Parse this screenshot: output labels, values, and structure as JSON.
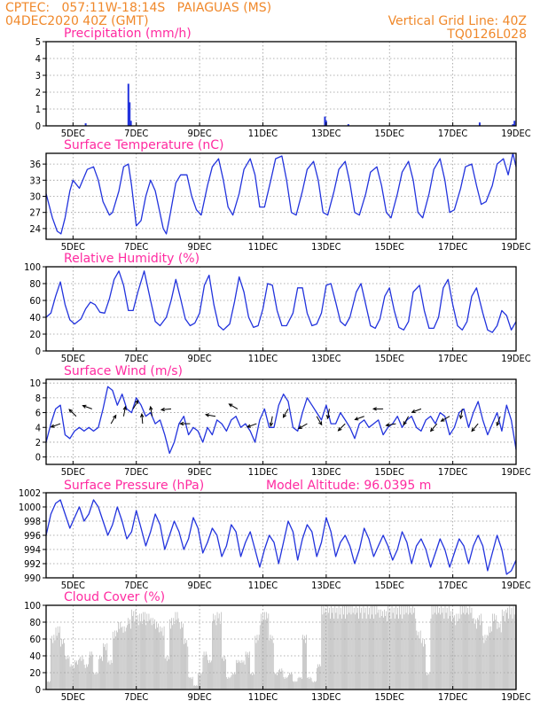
{
  "header": {
    "line1": "CPTEC:   057:11W-18:14S   PAIAGUAS (MS)",
    "line2_left": "04DEC2020 40Z (GMT)",
    "line2_right": "Vertical Grid Line: 40Z",
    "line3_right": "TQ0126L028"
  },
  "colors": {
    "header": "#f0882a",
    "title": "#ff2aa0",
    "line": "#2233dd",
    "cloud": "#a9a9a9",
    "grid": "#999999"
  },
  "x_axis": {
    "ticks": [
      {
        "label": "5DEC",
        "day": 5
      },
      {
        "label": "7DEC",
        "day": 7
      },
      {
        "label": "9DEC",
        "day": 9
      },
      {
        "label": "11DEC",
        "day": 11
      },
      {
        "label": "13DEC",
        "day": 13
      },
      {
        "label": "15DEC",
        "day": 15
      },
      {
        "label": "17DEC",
        "day": 17
      },
      {
        "label": "19DEC",
        "day": 19
      }
    ],
    "range_day": [
      4.15,
      19.0
    ]
  },
  "chart_data": [
    {
      "type": "bar",
      "title": "Precipitation (mm/h)",
      "ylim": [
        0,
        5
      ],
      "yticks": [
        0,
        1,
        2,
        3,
        4,
        5
      ],
      "x": [
        5.4,
        6.75,
        6.79,
        6.83,
        12.96,
        13.0,
        13.7,
        17.85,
        18.9,
        18.95
      ],
      "values": [
        0.15,
        2.5,
        1.4,
        0.3,
        0.55,
        0.3,
        0.1,
        0.2,
        0.1,
        0.3
      ]
    },
    {
      "type": "line",
      "title": "Surface Temperature (nC)",
      "ylim": [
        22,
        38
      ],
      "yticks": [
        24,
        27,
        30,
        33,
        36
      ],
      "x": [
        4.15,
        4.35,
        4.5,
        4.62,
        4.75,
        4.9,
        5.0,
        5.2,
        5.45,
        5.65,
        5.8,
        5.95,
        6.15,
        6.25,
        6.45,
        6.6,
        6.75,
        6.85,
        7.0,
        7.15,
        7.3,
        7.45,
        7.6,
        7.85,
        7.95,
        8.05,
        8.25,
        8.4,
        8.6,
        8.75,
        8.9,
        9.05,
        9.25,
        9.4,
        9.6,
        9.75,
        9.9,
        10.05,
        10.25,
        10.4,
        10.6,
        10.75,
        10.9,
        11.05,
        11.25,
        11.4,
        11.6,
        11.75,
        11.9,
        12.05,
        12.25,
        12.4,
        12.6,
        12.75,
        12.9,
        13.05,
        13.25,
        13.4,
        13.6,
        13.75,
        13.9,
        14.05,
        14.25,
        14.4,
        14.6,
        14.75,
        14.9,
        15.05,
        15.25,
        15.4,
        15.6,
        15.75,
        15.9,
        16.05,
        16.25,
        16.4,
        16.6,
        16.75,
        16.9,
        17.05,
        17.25,
        17.4,
        17.6,
        17.75,
        17.9,
        18.05,
        18.25,
        18.4,
        18.6,
        18.75,
        18.9,
        19.0
      ],
      "values": [
        30.5,
        26.0,
        23.5,
        23.0,
        26.0,
        31.0,
        33.0,
        31.5,
        35.0,
        35.5,
        33.0,
        29.0,
        26.5,
        27.0,
        31.0,
        35.5,
        36.0,
        32.0,
        24.5,
        25.5,
        30.0,
        33.0,
        31.0,
        24.0,
        23.0,
        26.0,
        32.5,
        34.0,
        34.0,
        30.0,
        27.5,
        26.5,
        32.0,
        35.5,
        37.0,
        33.0,
        28.0,
        26.5,
        30.5,
        35.0,
        37.0,
        34.0,
        28.0,
        28.0,
        33.0,
        37.0,
        37.5,
        33.0,
        27.0,
        26.5,
        31.0,
        35.0,
        36.5,
        33.0,
        27.0,
        26.5,
        31.0,
        35.0,
        36.5,
        32.5,
        27.0,
        26.5,
        30.5,
        34.5,
        35.5,
        32.0,
        27.0,
        26.0,
        30.5,
        34.5,
        36.5,
        33.0,
        27.0,
        26.0,
        30.5,
        35.0,
        37.0,
        33.0,
        27.0,
        27.5,
        31.5,
        35.5,
        36.0,
        32.0,
        28.5,
        29.0,
        32.0,
        36.0,
        37.0,
        34.0,
        38.0,
        35.5
      ]
    },
    {
      "type": "line",
      "title": "Relative Humidity (%)",
      "ylim": [
        0,
        100
      ],
      "yticks": [
        0,
        20,
        40,
        60,
        80,
        100
      ],
      "x": [
        4.15,
        4.3,
        4.45,
        4.6,
        4.75,
        4.9,
        5.05,
        5.25,
        5.4,
        5.55,
        5.7,
        5.85,
        6.0,
        6.15,
        6.3,
        6.45,
        6.6,
        6.75,
        6.9,
        7.05,
        7.25,
        7.45,
        7.6,
        7.75,
        7.95,
        8.1,
        8.25,
        8.4,
        8.55,
        8.7,
        8.85,
        9.0,
        9.15,
        9.3,
        9.45,
        9.6,
        9.75,
        9.95,
        10.1,
        10.25,
        10.4,
        10.55,
        10.7,
        10.85,
        11.0,
        11.15,
        11.3,
        11.45,
        11.6,
        11.75,
        11.95,
        12.1,
        12.25,
        12.4,
        12.55,
        12.7,
        12.85,
        13.0,
        13.15,
        13.3,
        13.45,
        13.6,
        13.75,
        13.95,
        14.1,
        14.25,
        14.4,
        14.55,
        14.7,
        14.85,
        15.0,
        15.15,
        15.3,
        15.45,
        15.6,
        15.75,
        15.95,
        16.1,
        16.25,
        16.4,
        16.55,
        16.7,
        16.85,
        17.0,
        17.15,
        17.3,
        17.45,
        17.6,
        17.75,
        17.95,
        18.1,
        18.25,
        18.4,
        18.55,
        18.7,
        18.85,
        19.0
      ],
      "values": [
        40,
        45,
        65,
        82,
        55,
        37,
        32,
        38,
        50,
        58,
        55,
        46,
        45,
        62,
        85,
        95,
        78,
        48,
        48,
        70,
        95,
        60,
        35,
        30,
        40,
        60,
        85,
        62,
        38,
        30,
        33,
        45,
        78,
        90,
        55,
        30,
        25,
        32,
        58,
        88,
        70,
        40,
        28,
        30,
        50,
        80,
        78,
        48,
        30,
        30,
        45,
        75,
        75,
        45,
        30,
        32,
        45,
        78,
        80,
        58,
        35,
        30,
        40,
        70,
        80,
        55,
        30,
        27,
        38,
        65,
        75,
        48,
        28,
        25,
        35,
        70,
        78,
        48,
        27,
        27,
        40,
        75,
        85,
        55,
        30,
        25,
        35,
        65,
        75,
        45,
        25,
        22,
        30,
        48,
        42,
        25,
        35
      ]
    },
    {
      "type": "line",
      "title": "Surface Wind (m/s)",
      "ylim": [
        -1,
        10.5
      ],
      "yticks": [
        0,
        2,
        4,
        6,
        8,
        10
      ],
      "x": [
        4.15,
        4.3,
        4.45,
        4.6,
        4.75,
        4.9,
        5.05,
        5.2,
        5.35,
        5.5,
        5.65,
        5.8,
        5.95,
        6.1,
        6.25,
        6.4,
        6.55,
        6.7,
        6.85,
        7.0,
        7.15,
        7.3,
        7.45,
        7.6,
        7.75,
        7.9,
        8.05,
        8.2,
        8.35,
        8.5,
        8.65,
        8.8,
        8.95,
        9.1,
        9.25,
        9.4,
        9.55,
        9.7,
        9.85,
        10.0,
        10.15,
        10.3,
        10.45,
        10.6,
        10.75,
        10.9,
        11.05,
        11.2,
        11.35,
        11.5,
        11.65,
        11.8,
        11.95,
        12.1,
        12.25,
        12.4,
        12.55,
        12.7,
        12.85,
        13.0,
        13.15,
        13.3,
        13.45,
        13.6,
        13.75,
        13.9,
        14.05,
        14.2,
        14.35,
        14.5,
        14.65,
        14.8,
        14.95,
        15.1,
        15.25,
        15.4,
        15.55,
        15.7,
        15.85,
        16.0,
        16.15,
        16.3,
        16.45,
        16.6,
        16.75,
        16.9,
        17.05,
        17.2,
        17.35,
        17.5,
        17.65,
        17.8,
        17.95,
        18.1,
        18.25,
        18.4,
        18.55,
        18.7,
        18.85,
        19.0
      ],
      "values": [
        2.0,
        4.5,
        6.5,
        7.0,
        3.0,
        2.5,
        3.5,
        4.0,
        3.5,
        4.0,
        3.5,
        4.0,
        6.5,
        9.5,
        9.0,
        7.0,
        8.5,
        6.5,
        6.0,
        8.0,
        7.0,
        5.5,
        6.0,
        4.5,
        5.0,
        3.0,
        0.5,
        2.0,
        4.5,
        5.5,
        3.0,
        4.0,
        3.5,
        2.0,
        4.0,
        3.0,
        5.0,
        4.5,
        3.5,
        5.0,
        5.5,
        4.0,
        4.5,
        3.5,
        2.0,
        5.0,
        6.5,
        4.0,
        4.0,
        7.0,
        8.5,
        7.5,
        4.0,
        3.5,
        6.0,
        8.0,
        7.0,
        6.0,
        5.0,
        7.0,
        4.5,
        4.5,
        6.0,
        5.0,
        4.0,
        2.5,
        4.5,
        5.0,
        4.0,
        4.5,
        5.0,
        3.0,
        4.0,
        4.5,
        5.5,
        4.0,
        5.0,
        5.5,
        4.0,
        3.5,
        5.0,
        5.5,
        4.5,
        6.0,
        5.5,
        3.0,
        4.0,
        6.0,
        6.5,
        4.0,
        6.0,
        7.5,
        5.0,
        3.0,
        4.5,
        6.0,
        3.5,
        7.0,
        5.0,
        1.0
      ]
    },
    {
      "type": "line",
      "title": "Surface Pressure (hPa)",
      "subtitle": "Model Altitude: 96.0395 m",
      "ylim": [
        990,
        1002
      ],
      "yticks": [
        990,
        992,
        994,
        996,
        998,
        1000,
        1002
      ],
      "x": [
        4.15,
        4.3,
        4.45,
        4.6,
        4.75,
        4.9,
        5.05,
        5.2,
        5.35,
        5.5,
        5.65,
        5.8,
        5.95,
        6.1,
        6.25,
        6.4,
        6.55,
        6.7,
        6.85,
        7.0,
        7.15,
        7.3,
        7.45,
        7.6,
        7.75,
        7.9,
        8.05,
        8.2,
        8.35,
        8.5,
        8.65,
        8.8,
        8.95,
        9.1,
        9.25,
        9.4,
        9.55,
        9.7,
        9.85,
        10.0,
        10.15,
        10.3,
        10.45,
        10.6,
        10.75,
        10.9,
        11.05,
        11.2,
        11.35,
        11.5,
        11.65,
        11.8,
        11.95,
        12.1,
        12.25,
        12.4,
        12.55,
        12.7,
        12.85,
        13.0,
        13.15,
        13.3,
        13.45,
        13.6,
        13.75,
        13.9,
        14.05,
        14.2,
        14.35,
        14.5,
        14.65,
        14.8,
        14.95,
        15.1,
        15.25,
        15.4,
        15.55,
        15.7,
        15.85,
        16.0,
        16.15,
        16.3,
        16.45,
        16.6,
        16.75,
        16.9,
        17.05,
        17.2,
        17.35,
        17.5,
        17.65,
        17.8,
        17.95,
        18.1,
        18.25,
        18.4,
        18.55,
        18.7,
        18.85,
        19.0
      ],
      "values": [
        996.0,
        999.0,
        1000.5,
        1001.0,
        999.0,
        997.0,
        998.5,
        1000.0,
        998.0,
        999.0,
        1001.0,
        1000.0,
        998.0,
        996.0,
        997.5,
        1000.0,
        998.0,
        995.5,
        996.5,
        999.5,
        997.0,
        994.5,
        996.5,
        999.0,
        997.5,
        994.0,
        996.0,
        998.0,
        996.5,
        994.0,
        995.5,
        998.5,
        997.0,
        993.5,
        995.0,
        997.0,
        996.0,
        993.0,
        994.5,
        997.5,
        996.5,
        993.0,
        995.0,
        996.5,
        994.0,
        991.5,
        994.0,
        996.0,
        995.0,
        992.0,
        995.0,
        998.0,
        996.5,
        992.5,
        995.5,
        997.5,
        996.5,
        993.0,
        995.0,
        998.5,
        996.5,
        993.0,
        995.0,
        996.0,
        994.5,
        992.0,
        994.0,
        997.0,
        995.5,
        993.0,
        994.5,
        996.0,
        994.5,
        992.5,
        994.0,
        996.5,
        995.0,
        992.0,
        994.5,
        995.5,
        994.0,
        991.5,
        993.5,
        995.5,
        994.0,
        991.5,
        993.5,
        995.5,
        994.5,
        992.0,
        994.5,
        996.0,
        994.5,
        991.0,
        993.5,
        996.0,
        994.0,
        990.5,
        991.0,
        992.5
      ]
    },
    {
      "type": "area",
      "title": "Cloud Cover (%)",
      "ylim": [
        0,
        100
      ],
      "yticks": [
        0,
        20,
        40,
        60,
        80,
        100
      ],
      "x": [
        4.15,
        4.3,
        4.45,
        4.6,
        4.75,
        4.9,
        5.05,
        5.2,
        5.35,
        5.5,
        5.65,
        5.8,
        5.95,
        6.1,
        6.25,
        6.4,
        6.55,
        6.7,
        6.85,
        7.0,
        7.15,
        7.3,
        7.45,
        7.6,
        7.75,
        7.9,
        8.05,
        8.2,
        8.35,
        8.5,
        8.65,
        8.8,
        8.95,
        9.1,
        9.25,
        9.4,
        9.55,
        9.7,
        9.85,
        10.0,
        10.15,
        10.3,
        10.45,
        10.6,
        10.75,
        10.9,
        11.05,
        11.2,
        11.35,
        11.5,
        11.65,
        11.8,
        11.95,
        12.1,
        12.25,
        12.4,
        12.55,
        12.7,
        12.85,
        13.0,
        13.15,
        13.3,
        13.45,
        13.6,
        13.75,
        13.9,
        14.05,
        14.2,
        14.35,
        14.5,
        14.65,
        14.8,
        14.95,
        15.1,
        15.25,
        15.4,
        15.55,
        15.7,
        15.85,
        16.0,
        16.15,
        16.3,
        16.45,
        16.6,
        16.75,
        16.9,
        17.05,
        17.2,
        17.35,
        17.5,
        17.65,
        17.8,
        17.95,
        18.1,
        18.25,
        18.4,
        18.55,
        18.7,
        18.85,
        19.0
      ],
      "values": [
        10,
        65,
        75,
        60,
        40,
        30,
        35,
        40,
        30,
        45,
        20,
        40,
        55,
        35,
        70,
        80,
        75,
        85,
        95,
        90,
        92,
        90,
        85,
        80,
        75,
        40,
        85,
        92,
        80,
        60,
        15,
        5,
        20,
        45,
        35,
        90,
        92,
        40,
        15,
        20,
        35,
        35,
        45,
        20,
        65,
        90,
        92,
        65,
        20,
        25,
        15,
        20,
        10,
        15,
        65,
        15,
        10,
        30,
        99,
        99,
        99,
        99,
        99,
        99,
        99,
        99,
        99,
        99,
        99,
        99,
        95,
        95,
        99,
        99,
        99,
        99,
        99,
        99,
        70,
        60,
        20,
        99,
        99,
        99,
        99,
        95,
        90,
        99,
        99,
        99,
        85,
        90,
        65,
        75,
        90,
        80,
        95,
        99,
        99,
        99
      ]
    }
  ]
}
